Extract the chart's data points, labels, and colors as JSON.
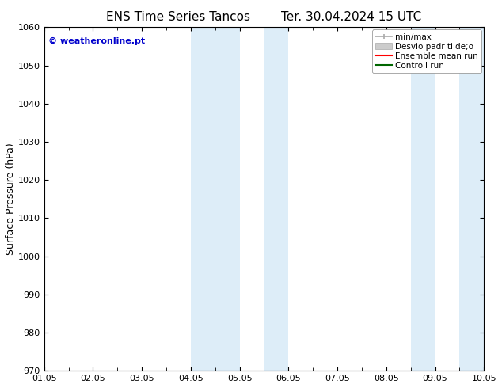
{
  "title_left": "ENS Time Series Tancos",
  "title_right": "Ter. 30.04.2024 15 UTC",
  "ylabel": "Surface Pressure (hPa)",
  "ylim": [
    970,
    1060
  ],
  "yticks": [
    970,
    980,
    990,
    1000,
    1010,
    1020,
    1030,
    1040,
    1050,
    1060
  ],
  "xlim_start": 0,
  "xlim_end": 9,
  "xtick_positions": [
    0,
    1,
    2,
    3,
    4,
    5,
    6,
    7,
    8,
    9
  ],
  "xtick_labels": [
    "01.05",
    "02.05",
    "03.05",
    "04.05",
    "05.05",
    "06.05",
    "07.05",
    "08.05",
    "09.05",
    "10.05"
  ],
  "shaded_bands": [
    {
      "x_start": 3.0,
      "x_end": 4.0
    },
    {
      "x_start": 4.5,
      "x_end": 5.0
    },
    {
      "x_start": 7.5,
      "x_end": 8.0
    },
    {
      "x_start": 8.5,
      "x_end": 9.0
    }
  ],
  "shaded_color": "#ddedf8",
  "watermark_text": "© weatheronline.pt",
  "watermark_color": "#0000cc",
  "legend_labels": [
    "min/max",
    "Desvio padr tilde;o",
    "Ensemble mean run",
    "Controll run"
  ],
  "legend_colors": [
    "#aaaaaa",
    "#cccccc",
    "#ff0000",
    "#006600"
  ],
  "bg_color": "#ffffff",
  "title_fontsize": 11,
  "ylabel_fontsize": 9,
  "tick_fontsize": 8,
  "legend_fontsize": 7.5
}
